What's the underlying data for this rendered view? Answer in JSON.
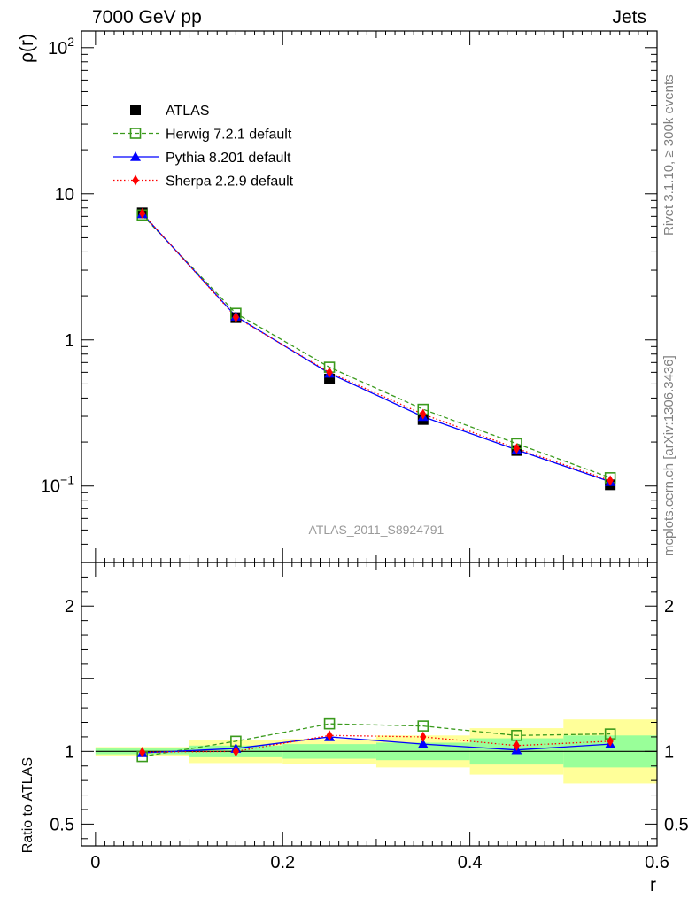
{
  "header": {
    "left": "7000 GeV pp",
    "right": "Jets"
  },
  "side_labels": {
    "rivet": "Rivet 3.1.10, ≥ 300k events",
    "mcplots": "mcplots.cern.ch [arXiv:1306.3436]"
  },
  "watermark": "ATLAS_2011_S8924791",
  "colors": {
    "atlas": "#000000",
    "herwig": "#3a9a1c",
    "pythia": "#0000ff",
    "sherpa": "#ff0000",
    "band_inner": "#99ff99",
    "band_outer": "#ffff99"
  },
  "chart_data": [
    {
      "type": "line",
      "ylabel": "ρ(r)",
      "yscale": "log",
      "ylim": [
        0.03,
        130
      ],
      "xlim": [
        -0.015,
        0.6
      ],
      "yticks": [
        {
          "value": 100,
          "base": "10",
          "exp": "2"
        },
        {
          "value": 10,
          "base": "10",
          "exp": ""
        },
        {
          "value": 1,
          "base": "1",
          "exp": ""
        },
        {
          "value": 0.1,
          "base": "10",
          "exp": "−1"
        }
      ],
      "legend_position": "top-left",
      "x": [
        0.05,
        0.15,
        0.25,
        0.35,
        0.45,
        0.55
      ],
      "series": [
        {
          "name": "ATLAS",
          "marker": "square-filled",
          "values": [
            7.4,
            1.42,
            0.54,
            0.285,
            0.175,
            0.102
          ]
        },
        {
          "name": "Herwig 7.2.1 default",
          "marker": "square-open",
          "line": "dashed",
          "values": [
            7.15,
            1.52,
            0.65,
            0.335,
            0.195,
            0.114
          ]
        },
        {
          "name": "Pythia 8.201 default",
          "marker": "triangle",
          "line": "solid",
          "values": [
            7.3,
            1.45,
            0.59,
            0.298,
            0.177,
            0.107
          ]
        },
        {
          "name": "Sherpa 2.2.9 default",
          "marker": "diamond",
          "line": "dotted",
          "values": [
            7.35,
            1.43,
            0.6,
            0.31,
            0.181,
            0.109
          ]
        }
      ]
    },
    {
      "type": "line",
      "ylabel": "Ratio to ATLAS",
      "xlabel": "r",
      "ylim": [
        0.35,
        2.3
      ],
      "xlim": [
        -0.015,
        0.6
      ],
      "yticks": [
        2,
        1,
        0.5
      ],
      "ytick_labels": [
        "2",
        "1",
        "0.5"
      ],
      "xticks": [
        0,
        0.2,
        0.4,
        0.6
      ],
      "xtick_labels": [
        "0",
        "0.2",
        "0.4",
        "0.6"
      ],
      "bins": [
        {
          "lo": 0.0,
          "hi": 0.1,
          "inner": [
            0.98,
            1.02
          ],
          "outer": [
            0.97,
            1.03
          ]
        },
        {
          "lo": 0.1,
          "hi": 0.2,
          "inner": [
            0.96,
            1.04
          ],
          "outer": [
            0.92,
            1.08
          ]
        },
        {
          "lo": 0.2,
          "hi": 0.3,
          "inner": [
            0.95,
            1.05
          ],
          "outer": [
            0.915,
            1.085
          ]
        },
        {
          "lo": 0.3,
          "hi": 0.4,
          "inner": [
            0.94,
            1.06
          ],
          "outer": [
            0.89,
            1.11
          ]
        },
        {
          "lo": 0.4,
          "hi": 0.5,
          "inner": [
            0.91,
            1.09
          ],
          "outer": [
            0.84,
            1.16
          ]
        },
        {
          "lo": 0.5,
          "hi": 0.6,
          "inner": [
            0.89,
            1.11
          ],
          "outer": [
            0.78,
            1.22
          ]
        }
      ],
      "x": [
        0.05,
        0.15,
        0.25,
        0.35,
        0.45,
        0.55
      ],
      "series": [
        {
          "name": "Herwig 7.2.1 default",
          "marker": "square-open",
          "line": "dashed",
          "values": [
            0.965,
            1.07,
            1.19,
            1.175,
            1.11,
            1.12
          ]
        },
        {
          "name": "Pythia 8.201 default",
          "marker": "triangle",
          "line": "solid",
          "values": [
            0.99,
            1.02,
            1.1,
            1.05,
            1.01,
            1.05
          ]
        },
        {
          "name": "Sherpa 2.2.9 default",
          "marker": "diamond",
          "line": "dotted",
          "values": [
            0.995,
            1.0,
            1.11,
            1.1,
            1.04,
            1.07
          ]
        }
      ]
    }
  ]
}
